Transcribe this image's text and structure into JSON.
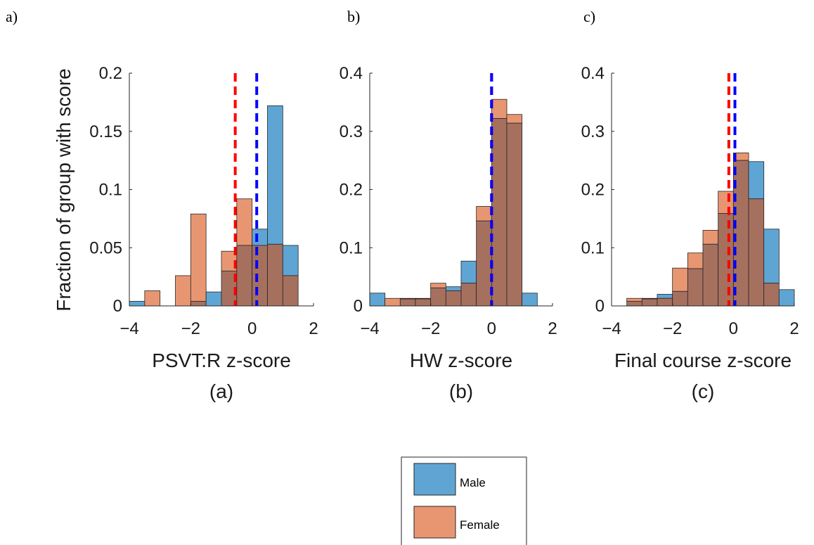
{
  "figure": {
    "panel_letters": [
      "a)",
      "b)",
      "c)"
    ],
    "shared_ylabel": "Fraction of group with score"
  },
  "legend": {
    "entries": [
      {
        "label": "Male",
        "color": "#5fa5d4"
      },
      {
        "label": "Female",
        "color": "#e89672"
      }
    ]
  },
  "colors": {
    "male": "#5fa5d4",
    "female": "#e89672",
    "overlap": "#a6705f",
    "female_mean_line": "#ff0000",
    "male_mean_line": "#0000ff"
  },
  "chart_data": [
    {
      "type": "bar",
      "panel": "a)",
      "xlabel": "PSVT:R z-score",
      "caption": "(a)",
      "ylabel": "Fraction of group with score",
      "xlim": [
        -4,
        2
      ],
      "ylim": [
        0,
        0.2
      ],
      "xticks": [
        -4,
        -2,
        0,
        2
      ],
      "yticks": [
        0,
        0.05,
        0.1,
        0.15,
        0.2
      ],
      "ytick_labels": [
        "0",
        "0.05",
        "0.1",
        "0.15",
        "0.2"
      ],
      "bin_edges": [
        -4.0,
        -3.5,
        -3.0,
        -2.5,
        -2.0,
        -1.5,
        -1.0,
        -0.5,
        0.0,
        0.5,
        1.0,
        1.5
      ],
      "series": [
        {
          "name": "Male",
          "values": [
            0.004,
            0.0,
            0.0,
            0.0,
            0.004,
            0.012,
            0.03,
            0.052,
            0.066,
            0.172,
            0.052
          ]
        },
        {
          "name": "Female",
          "values": [
            0.0,
            0.013,
            0.0,
            0.026,
            0.079,
            0.0,
            0.047,
            0.092,
            0.052,
            0.053,
            0.026
          ]
        }
      ],
      "mean_lines": {
        "female": -0.55,
        "male": 0.15
      }
    },
    {
      "type": "bar",
      "panel": "b)",
      "xlabel": "HW z-score",
      "caption": "(b)",
      "xlim": [
        -4,
        2
      ],
      "ylim": [
        0,
        0.4
      ],
      "xticks": [
        -4,
        -2,
        0,
        2
      ],
      "yticks": [
        0,
        0.1,
        0.2,
        0.3,
        0.4
      ],
      "ytick_labels": [
        "0",
        "0.1",
        "0.2",
        "0.3",
        "0.4"
      ],
      "bin_edges": [
        -4.0,
        -3.5,
        -3.0,
        -2.5,
        -2.0,
        -1.5,
        -1.0,
        -0.5,
        0.0,
        0.5,
        1.0,
        1.5
      ],
      "series": [
        {
          "name": "Male",
          "values": [
            0.022,
            0.0,
            0.012,
            0.012,
            0.031,
            0.033,
            0.077,
            0.146,
            0.322,
            0.314,
            0.022
          ]
        },
        {
          "name": "Female",
          "values": [
            0.0,
            0.013,
            0.013,
            0.013,
            0.039,
            0.026,
            0.039,
            0.171,
            0.355,
            0.329,
            0.0
          ]
        }
      ],
      "mean_lines": {
        "female": 0.0,
        "male": 0.0
      }
    },
    {
      "type": "bar",
      "panel": "c)",
      "xlabel": "Final course z-score",
      "caption": "(c)",
      "xlim": [
        -4,
        2
      ],
      "ylim": [
        0,
        0.4
      ],
      "xticks": [
        -4,
        -2,
        0,
        2
      ],
      "yticks": [
        0,
        0.1,
        0.2,
        0.3,
        0.4
      ],
      "ytick_labels": [
        "0",
        "0.1",
        "0.2",
        "0.3",
        "0.4"
      ],
      "bin_edges": [
        -3.5,
        -3.0,
        -2.5,
        -2.0,
        -1.5,
        -1.0,
        -0.5,
        0.0,
        0.5,
        1.0,
        1.5,
        2.0
      ],
      "series": [
        {
          "name": "Male",
          "values": [
            0.008,
            0.012,
            0.02,
            0.025,
            0.064,
            0.106,
            0.159,
            0.25,
            0.248,
            0.132,
            0.028
          ]
        },
        {
          "name": "Female",
          "values": [
            0.013,
            0.013,
            0.013,
            0.065,
            0.091,
            0.13,
            0.197,
            0.263,
            0.184,
            0.039,
            0.0
          ]
        }
      ],
      "mean_lines": {
        "female": -0.15,
        "male": 0.05
      }
    }
  ]
}
